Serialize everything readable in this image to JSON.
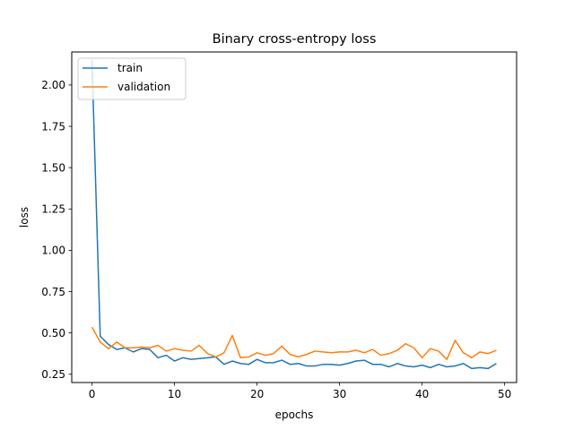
{
  "chart_data": {
    "type": "line",
    "title": "Binary cross-entropy loss",
    "xlabel": "epochs",
    "ylabel": "loss",
    "xlim": [
      -2.45,
      51.45
    ],
    "ylim": [
      0.2,
      2.2
    ],
    "xticks": [
      0,
      10,
      20,
      30,
      40,
      50
    ],
    "yticks": [
      0.25,
      0.5,
      0.75,
      1.0,
      1.25,
      1.5,
      1.75,
      2.0
    ],
    "ytick_labels": [
      "0.25",
      "0.50",
      "0.75",
      "1.00",
      "1.25",
      "1.50",
      "1.75",
      "2.00"
    ],
    "grid": false,
    "legend_position": "top-left",
    "x": [
      0,
      1,
      2,
      3,
      4,
      5,
      6,
      7,
      8,
      9,
      10,
      11,
      12,
      13,
      14,
      15,
      16,
      17,
      18,
      19,
      20,
      21,
      22,
      23,
      24,
      25,
      26,
      27,
      28,
      29,
      30,
      31,
      32,
      33,
      34,
      35,
      36,
      37,
      38,
      39,
      40,
      41,
      42,
      43,
      44,
      45,
      46,
      47,
      48,
      49
    ],
    "series": [
      {
        "name": "train",
        "color": "#1f77b4",
        "values": [
          2.15,
          0.48,
          0.43,
          0.4,
          0.41,
          0.385,
          0.405,
          0.4,
          0.35,
          0.365,
          0.33,
          0.35,
          0.34,
          0.345,
          0.35,
          0.355,
          0.31,
          0.33,
          0.315,
          0.31,
          0.34,
          0.32,
          0.32,
          0.335,
          0.31,
          0.315,
          0.3,
          0.3,
          0.31,
          0.31,
          0.305,
          0.315,
          0.33,
          0.335,
          0.31,
          0.31,
          0.295,
          0.315,
          0.3,
          0.295,
          0.305,
          0.29,
          0.31,
          0.295,
          0.3,
          0.315,
          0.285,
          0.29,
          0.285,
          0.315
        ]
      },
      {
        "name": "validation",
        "color": "#ff7f0e",
        "values": [
          0.535,
          0.445,
          0.405,
          0.445,
          0.41,
          0.41,
          0.415,
          0.41,
          0.425,
          0.39,
          0.405,
          0.395,
          0.39,
          0.425,
          0.375,
          0.355,
          0.38,
          0.485,
          0.35,
          0.355,
          0.38,
          0.365,
          0.375,
          0.42,
          0.37,
          0.355,
          0.37,
          0.39,
          0.385,
          0.38,
          0.385,
          0.385,
          0.395,
          0.38,
          0.4,
          0.365,
          0.375,
          0.395,
          0.435,
          0.41,
          0.35,
          0.405,
          0.39,
          0.34,
          0.455,
          0.38,
          0.35,
          0.385,
          0.375,
          0.395
        ]
      }
    ]
  }
}
